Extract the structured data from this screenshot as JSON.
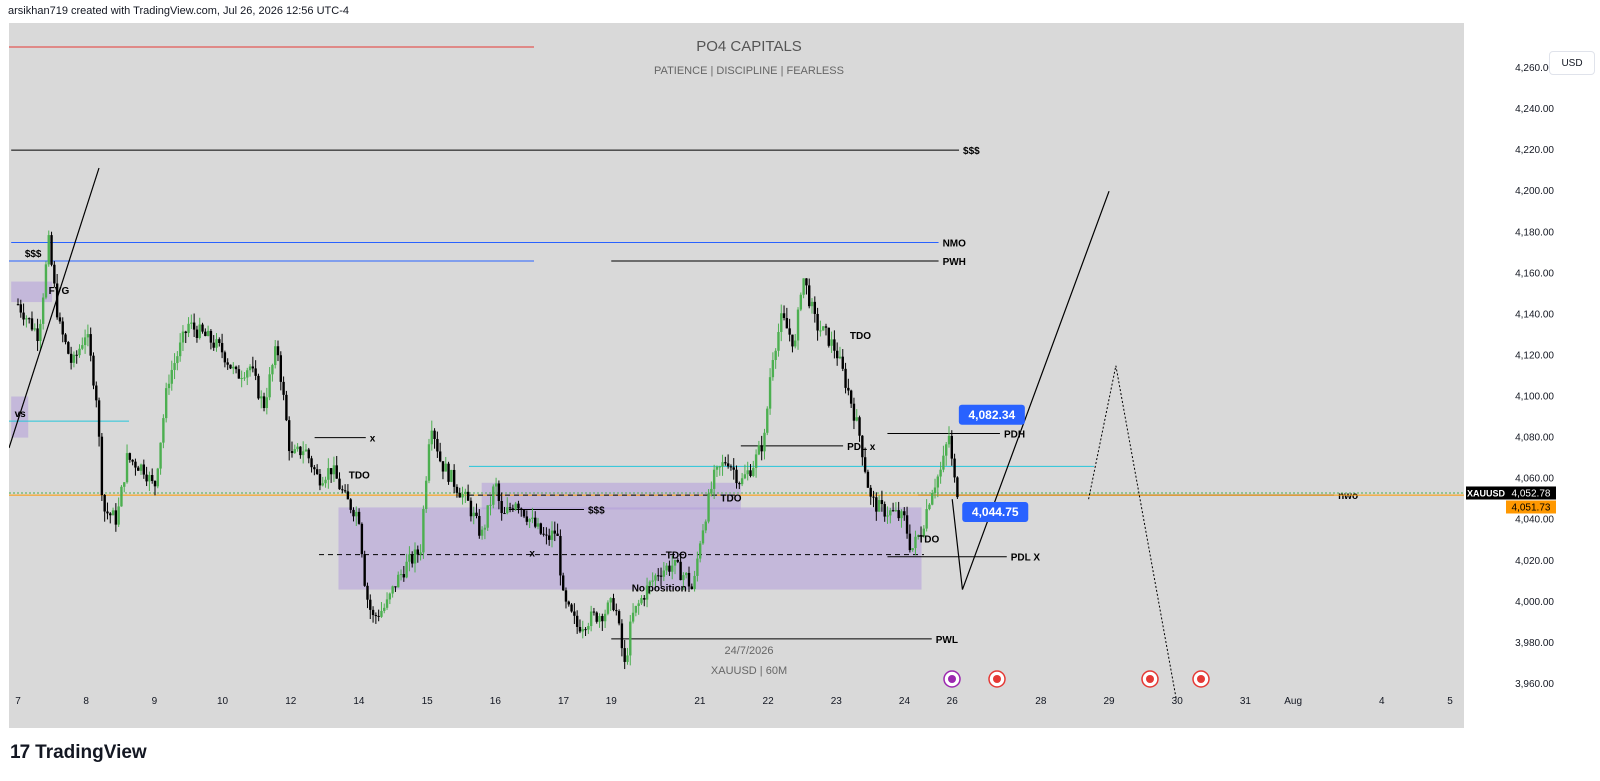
{
  "header": {
    "attribution": "arsikhan719 created with TradingView.com, Jul 26, 2026 12:56 UTC-4"
  },
  "watermark": {
    "title": "PO4 CAPITALS",
    "subtitle": "PATIENCE  |  DISCIPLINE  |  FEARLESS",
    "date": "24/7/2026",
    "symbol_line": "XAUUSD | 60M"
  },
  "currency_button": "USD",
  "brand": {
    "logo": "17",
    "name": "TradingView"
  },
  "colors": {
    "background": "#d9d9d9",
    "up_candle": "#4caf50",
    "down_candle": "#000000",
    "zone": "#b39ddb",
    "blue_label": "#2962ff",
    "price_label": "#000000",
    "orange_label": "#ff9800",
    "nmo_line": "#2962ff"
  },
  "chart_data": {
    "type": "candlestick",
    "symbol": "XAUUSD",
    "timeframe": "60M",
    "ylim": [
      3950,
      4275
    ],
    "y_ticks": [
      3960,
      3980,
      4000,
      4020,
      4040,
      4060,
      4080,
      4100,
      4120,
      4140,
      4160,
      4180,
      4200,
      4220,
      4240,
      4260
    ],
    "y_tick_labels": [
      "3,960.00",
      "3,980.00",
      "4,000.00",
      "4,020.00",
      "4,040.00",
      "4,060.00",
      "4,080.00",
      "4,100.00",
      "4,120.00",
      "4,140.00",
      "4,160.00",
      "4,180.00",
      "4,200.00",
      "4,220.00",
      "4,240.00",
      "4,260.00"
    ],
    "x_ticks": [
      {
        "label": "7",
        "day": 6.0
      },
      {
        "label": "8",
        "day": 7.0
      },
      {
        "label": "9",
        "day": 8.0
      },
      {
        "label": "10",
        "day": 9.0
      },
      {
        "label": "12",
        "day": 10.0
      },
      {
        "label": "14",
        "day": 11.0
      },
      {
        "label": "15",
        "day": 12.0
      },
      {
        "label": "16",
        "day": 13.0
      },
      {
        "label": "17",
        "day": 14.0
      },
      {
        "label": "19",
        "day": 14.7
      },
      {
        "label": "21",
        "day": 16.0
      },
      {
        "label": "22",
        "day": 17.0
      },
      {
        "label": "23",
        "day": 18.0
      },
      {
        "label": "24",
        "day": 19.0
      },
      {
        "label": "26",
        "day": 19.7
      },
      {
        "label": "28",
        "day": 21.0
      },
      {
        "label": "29",
        "day": 22.0
      },
      {
        "label": "30",
        "day": 23.0
      },
      {
        "label": "31",
        "day": 24.0
      },
      {
        "label": "Aug",
        "day": 24.7
      },
      {
        "label": "4",
        "day": 26.0
      },
      {
        "label": "5",
        "day": 27.0
      }
    ],
    "anchors": [
      [
        6.0,
        4145
      ],
      [
        6.3,
        4130
      ],
      [
        6.45,
        4175
      ],
      [
        6.6,
        4135
      ],
      [
        6.8,
        4115
      ],
      [
        7.0,
        4132
      ],
      [
        7.15,
        4100
      ],
      [
        7.25,
        4045
      ],
      [
        7.45,
        4040
      ],
      [
        7.6,
        4070
      ],
      [
        7.85,
        4065
      ],
      [
        8.0,
        4055
      ],
      [
        8.2,
        4108
      ],
      [
        8.5,
        4135
      ],
      [
        8.8,
        4128
      ],
      [
        9.0,
        4122
      ],
      [
        9.2,
        4110
      ],
      [
        9.4,
        4115
      ],
      [
        9.6,
        4095
      ],
      [
        9.8,
        4125
      ],
      [
        10.0,
        4070
      ],
      [
        10.2,
        4075
      ],
      [
        10.4,
        4060
      ],
      [
        10.6,
        4065
      ],
      [
        10.8,
        4050
      ],
      [
        11.0,
        4042
      ],
      [
        11.1,
        4005
      ],
      [
        11.2,
        3992
      ],
      [
        11.4,
        3998
      ],
      [
        11.55,
        4010
      ],
      [
        11.7,
        4018
      ],
      [
        11.9,
        4025
      ],
      [
        12.05,
        4090
      ],
      [
        12.2,
        4068
      ],
      [
        12.4,
        4058
      ],
      [
        12.6,
        4048
      ],
      [
        12.8,
        4032
      ],
      [
        13.0,
        4058
      ],
      [
        13.1,
        4040
      ],
      [
        13.3,
        4050
      ],
      [
        13.55,
        4038
      ],
      [
        13.75,
        4030
      ],
      [
        13.9,
        4035
      ],
      [
        14.0,
        4000
      ],
      [
        14.2,
        3988
      ],
      [
        14.4,
        3992
      ],
      [
        14.6,
        3995
      ],
      [
        14.75,
        4000
      ],
      [
        14.9,
        3968
      ],
      [
        15.0,
        3992
      ],
      [
        15.2,
        4005
      ],
      [
        15.4,
        4015
      ],
      [
        15.6,
        4018
      ],
      [
        15.8,
        4012
      ],
      [
        15.9,
        4005
      ],
      [
        16.0,
        4030
      ],
      [
        16.2,
        4060
      ],
      [
        16.4,
        4070
      ],
      [
        16.6,
        4058
      ],
      [
        16.8,
        4068
      ],
      [
        16.95,
        4080
      ],
      [
        17.05,
        4118
      ],
      [
        17.2,
        4138
      ],
      [
        17.4,
        4125
      ],
      [
        17.5,
        4160
      ],
      [
        17.6,
        4148
      ],
      [
        17.7,
        4135
      ],
      [
        17.85,
        4130
      ],
      [
        18.0,
        4122
      ],
      [
        18.2,
        4100
      ],
      [
        18.35,
        4080
      ],
      [
        18.5,
        4050
      ],
      [
        18.65,
        4045
      ],
      [
        18.85,
        4043
      ],
      [
        19.0,
        4040
      ],
      [
        19.1,
        4025
      ],
      [
        19.25,
        4035
      ],
      [
        19.4,
        4055
      ],
      [
        19.55,
        4065
      ],
      [
        19.65,
        4082
      ],
      [
        19.72,
        4060
      ],
      [
        19.8,
        4052
      ]
    ],
    "price_labels": [
      {
        "value": 4082.34,
        "text": "4,082.34"
      },
      {
        "value": 4044.75,
        "text": "4,044.75"
      }
    ],
    "current_price": {
      "symbol": "XAUUSD",
      "value": 4052.78,
      "text": "4,052.78"
    },
    "secondary_price": {
      "value": 4051.73,
      "text": "4,051.73"
    },
    "levels": [
      {
        "label": "$$$",
        "value": 4220,
        "style": "solid",
        "color": "#000000",
        "from_day": 5.9,
        "to_day": 19.8
      },
      {
        "label": "NMO",
        "value": 4175,
        "style": "solid",
        "color": "#2962ff",
        "from_day": 5.9,
        "to_day": 19.5
      },
      {
        "label": "PWH",
        "value": 4166,
        "style": "solid",
        "color": "#000000",
        "from_day": 14.7,
        "to_day": 19.5
      },
      {
        "label": "PDH",
        "value": 4082,
        "style": "solid",
        "color": "#000000",
        "from_day": 18.75,
        "to_day": 20.4
      },
      {
        "label": "PDL x",
        "value": 4076,
        "style": "solid",
        "color": "#000000",
        "from_day": 16.6,
        "to_day": 18.1
      },
      {
        "label": "PDL X",
        "value": 4022,
        "style": "solid",
        "color": "#000000",
        "from_day": 18.75,
        "to_day": 20.5
      },
      {
        "label": "PWL",
        "value": 3982,
        "style": "solid",
        "color": "#000000",
        "from_day": 14.7,
        "to_day": 19.4
      },
      {
        "label": "$$$",
        "value": 4045,
        "style": "solid",
        "color": "#000000",
        "from_day": 13.2,
        "to_day": 14.3
      },
      {
        "label": "x",
        "value": 4080,
        "style": "solid",
        "color": "#000000",
        "from_day": 10.35,
        "to_day": 11.1
      },
      {
        "label": "nwo",
        "value": 4052,
        "style": "solid",
        "color": "#000000",
        "from_day": 19.2,
        "to_day": 25.3
      }
    ],
    "annotations": [
      {
        "text": "TDO",
        "day": 10.85,
        "value": 4060
      },
      {
        "text": "TDO",
        "day": 18.2,
        "value": 4128
      },
      {
        "text": "TDO",
        "day": 16.3,
        "value": 4049
      },
      {
        "text": "TDO",
        "day": 19.2,
        "value": 4029
      },
      {
        "text": "TDO",
        "day": 15.5,
        "value": 4021
      },
      {
        "text": "$$$",
        "day": 6.1,
        "value": 4168
      },
      {
        "text": "FVG",
        "day": 6.45,
        "value": 4150
      },
      {
        "text": "vs",
        "day": 5.95,
        "value": 4090
      },
      {
        "text": "No position",
        "day": 15.0,
        "value": 4005
      },
      {
        "text": "x",
        "day": 13.5,
        "value": 4022
      }
    ],
    "zones": [
      {
        "from_day": 10.7,
        "to_day": 19.25,
        "from": 4006,
        "to": 4046
      },
      {
        "from_day": 12.8,
        "to_day": 16.6,
        "from": 4045,
        "to": 4058
      },
      {
        "from_day": 5.9,
        "to_day": 6.5,
        "from": 4146,
        "to": 4156
      },
      {
        "from_day": 5.9,
        "to_day": 6.15,
        "from": 4080,
        "to": 4100
      }
    ],
    "projection": [
      [
        19.7,
        4050
      ],
      [
        19.85,
        4006
      ],
      [
        22.0,
        4200
      ]
    ],
    "projection_alt": [
      [
        21.7,
        4050
      ],
      [
        22.1,
        4115
      ],
      [
        23.0,
        3950
      ]
    ]
  }
}
